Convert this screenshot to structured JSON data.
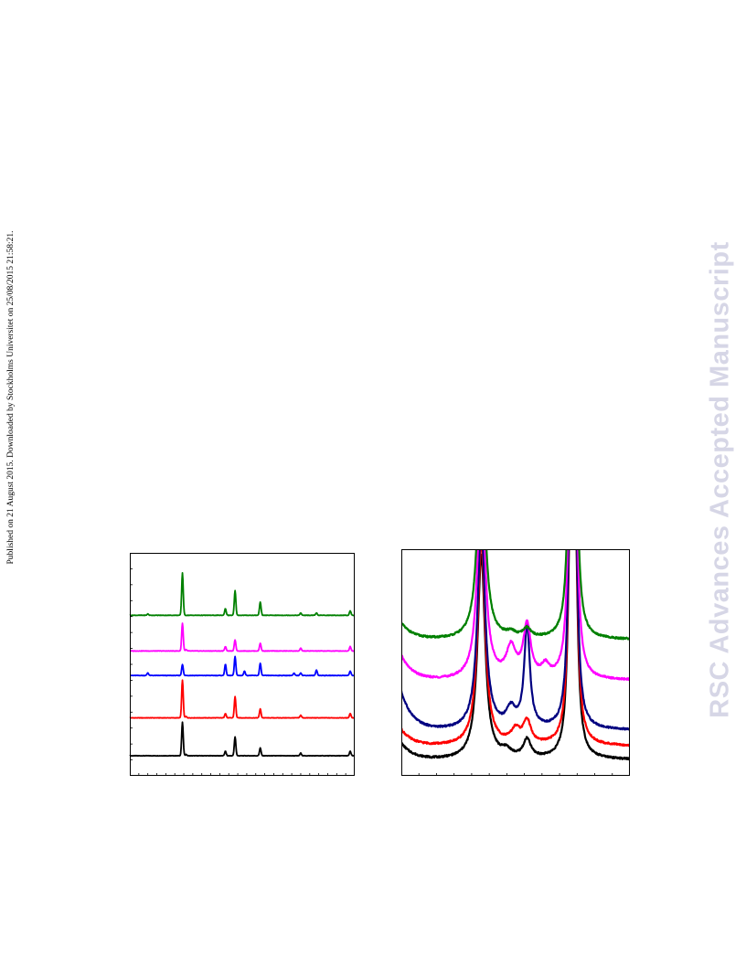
{
  "side_note": "Published on 21 August 2015. Downloaded by Stockholms Universitet on 25/08/2015 21:58:21.",
  "watermark": "RSC Advances Accepted Manuscript",
  "chart_data": [
    {
      "type": "line",
      "title": "",
      "xlabel": "",
      "ylabel": "",
      "x_tick_count": 25,
      "y_tick_count": 14,
      "grid": false,
      "legend": "none",
      "series": [
        {
          "color": "#000000",
          "offset": 0.09,
          "peaks": [
            [
              0.234,
              0.15
            ],
            [
              0.425,
              0.02
            ],
            [
              0.468,
              0.085
            ],
            [
              0.58,
              0.035
            ],
            [
              0.25,
              0.006
            ],
            [
              0.76,
              0.012
            ],
            [
              0.98,
              0.02
            ]
          ]
        },
        {
          "color": "#ff0000",
          "offset": 0.26,
          "peaks": [
            [
              0.234,
              0.17
            ],
            [
              0.425,
              0.02
            ],
            [
              0.468,
              0.095
            ],
            [
              0.58,
              0.04
            ],
            [
              0.25,
              0.006
            ],
            [
              0.76,
              0.012
            ],
            [
              0.98,
              0.02
            ]
          ]
        },
        {
          "color": "#0000ff",
          "offset": 0.45,
          "peaks": [
            [
              0.08,
              0.012
            ],
            [
              0.234,
              0.05
            ],
            [
              0.425,
              0.05
            ],
            [
              0.468,
              0.085
            ],
            [
              0.51,
              0.02
            ],
            [
              0.58,
              0.055
            ],
            [
              0.73,
              0.01
            ],
            [
              0.76,
              0.012
            ],
            [
              0.83,
              0.025
            ],
            [
              0.98,
              0.02
            ]
          ]
        },
        {
          "color": "#ff00ff",
          "offset": 0.56,
          "peaks": [
            [
              0.234,
              0.125
            ],
            [
              0.425,
              0.02
            ],
            [
              0.468,
              0.05
            ],
            [
              0.58,
              0.035
            ],
            [
              0.25,
              0.006
            ],
            [
              0.76,
              0.012
            ],
            [
              0.98,
              0.02
            ]
          ]
        },
        {
          "color": "#008000",
          "offset": 0.72,
          "peaks": [
            [
              0.08,
              0.006
            ],
            [
              0.234,
              0.19
            ],
            [
              0.425,
              0.03
            ],
            [
              0.468,
              0.11
            ],
            [
              0.58,
              0.06
            ],
            [
              0.76,
              0.01
            ],
            [
              0.83,
              0.01
            ],
            [
              0.98,
              0.02
            ]
          ]
        }
      ]
    },
    {
      "type": "line",
      "title": "",
      "xlabel": "",
      "ylabel": "",
      "x_tick_count": 13,
      "y_tick_count": 0,
      "grid": false,
      "legend": "none",
      "series": [
        {
          "color": "#000000",
          "base": 0.07,
          "peaks": [
            [
              0.35,
              0.9,
              0.02
            ],
            [
              0.46,
              0.03,
              0.025
            ],
            [
              0.55,
              0.08,
              0.02
            ],
            [
              0.74,
              1.0,
              0.012
            ],
            [
              0.76,
              1.0,
              0.012
            ]
          ]
        },
        {
          "color": "#ff0000",
          "base": 0.13,
          "peaks": [
            [
              0.35,
              0.9,
              0.02
            ],
            [
              0.5,
              0.06,
              0.025
            ],
            [
              0.55,
              0.1,
              0.02
            ],
            [
              0.74,
              1.0,
              0.012
            ],
            [
              0.76,
              1.0,
              0.012
            ]
          ]
        },
        {
          "color": "#000080",
          "base": 0.2,
          "peaks": [
            [
              0.35,
              0.9,
              0.02
            ],
            [
              0.48,
              0.08,
              0.025
            ],
            [
              0.55,
              0.45,
              0.015
            ],
            [
              0.74,
              1.0,
              0.012
            ],
            [
              0.76,
              1.0,
              0.012
            ]
          ]
        },
        {
          "color": "#ff00ff",
          "base": 0.42,
          "peaks": [
            [
              0.35,
              0.9,
              0.02
            ],
            [
              0.48,
              0.13,
              0.025
            ],
            [
              0.55,
              0.23,
              0.02
            ],
            [
              0.63,
              0.05,
              0.02
            ],
            [
              0.74,
              1.0,
              0.012
            ],
            [
              0.76,
              1.0,
              0.012
            ]
          ]
        },
        {
          "color": "#008000",
          "base": 0.6,
          "peaks": [
            [
              0.35,
              0.9,
              0.02
            ],
            [
              0.48,
              0.02,
              0.025
            ],
            [
              0.55,
              0.04,
              0.02
            ],
            [
              0.74,
              1.0,
              0.012
            ],
            [
              0.76,
              1.0,
              0.012
            ]
          ]
        }
      ]
    }
  ]
}
